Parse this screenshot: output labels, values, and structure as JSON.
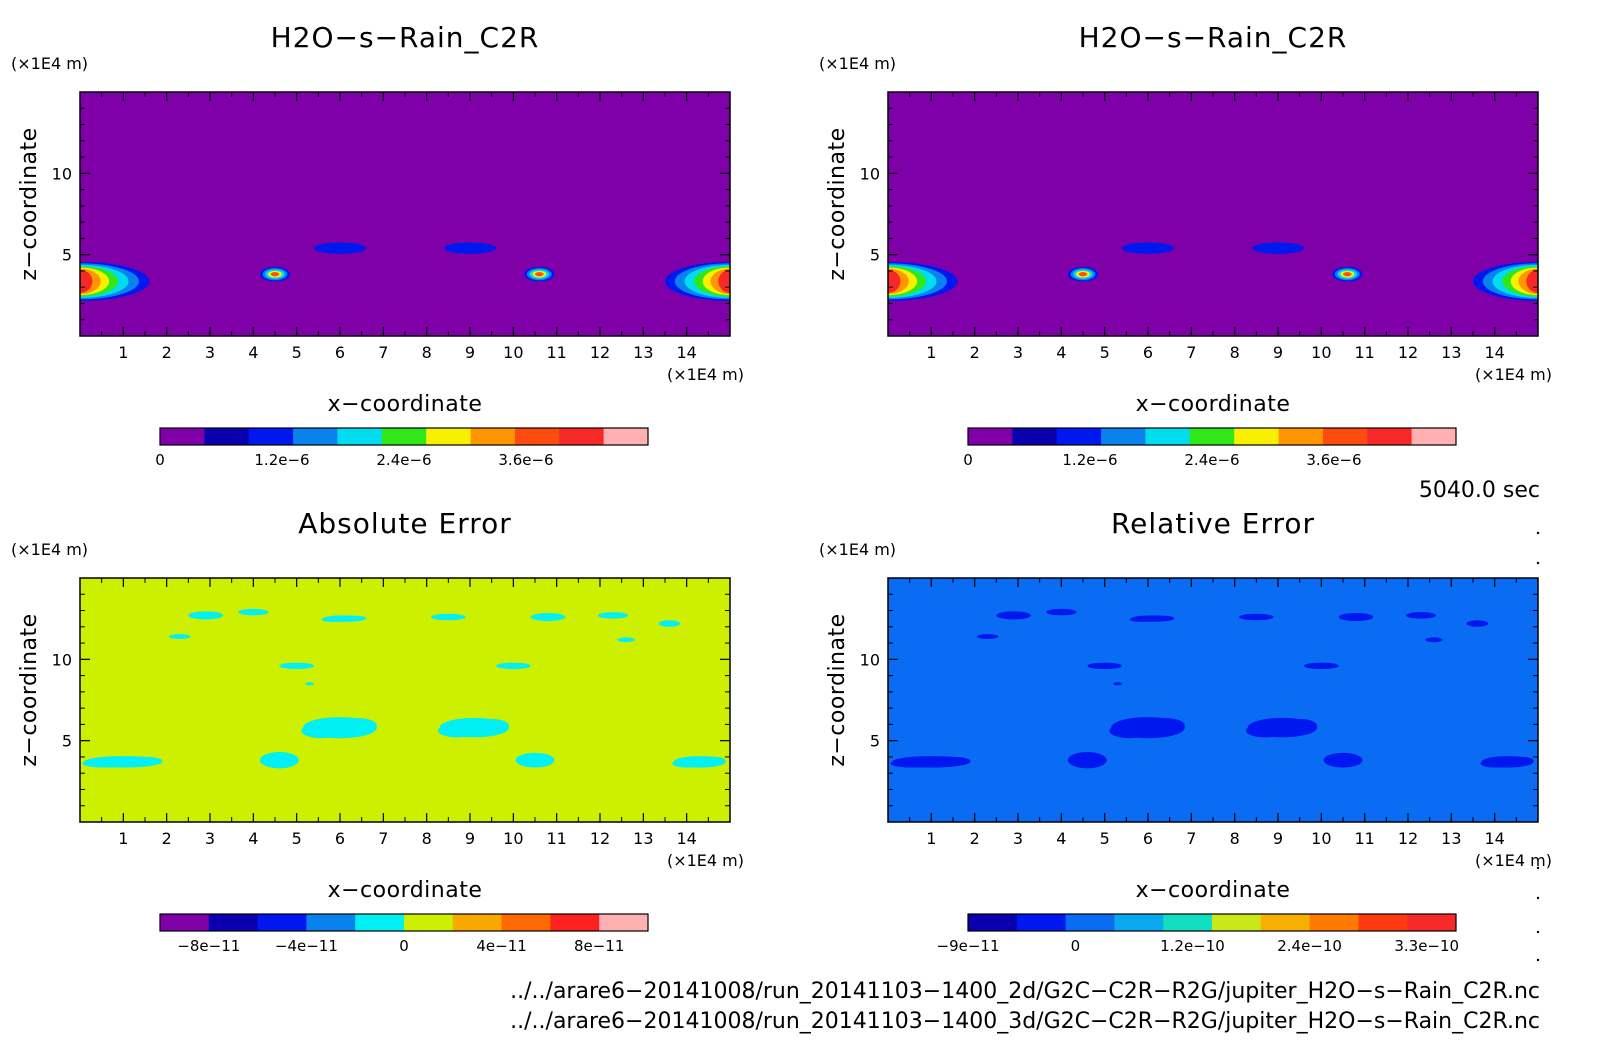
{
  "chart_data": [
    {
      "type": "heatmap",
      "title": "H2O−s−Rain_C2R",
      "xlabel": "x−coordinate",
      "ylabel": "z−coordinate",
      "x_unit": "(×1E4 m)",
      "y_unit": "(×1E4 m)",
      "xlim": [
        0,
        15
      ],
      "ylim": [
        0,
        15
      ],
      "xticks": [
        "1",
        "2",
        "3",
        "4",
        "5",
        "6",
        "7",
        "8",
        "9",
        "10",
        "11",
        "12",
        "13",
        "14"
      ],
      "yticks": [
        "5",
        "10"
      ],
      "background_color": "#7f00a8",
      "colorbar": {
        "colors": [
          "#7f00a8",
          "#0a00b0",
          "#0018f0",
          "#0a82ee",
          "#00dcf0",
          "#30e818",
          "#f8f000",
          "#ff9600",
          "#ff4a10",
          "#f62828",
          "#ffb0b0"
        ],
        "labels": [
          "0",
          "1.2e−6",
          "2.4e−6",
          "3.6e−6"
        ],
        "label_index": [
          0,
          2.75,
          5.5,
          8.25
        ]
      },
      "features": [
        {
          "type": "plume",
          "x": 0,
          "z": 3.6,
          "w": 1.6,
          "h": 1.2
        },
        {
          "type": "plume-right",
          "x": 15,
          "z": 3.6,
          "w": 1.5,
          "h": 1.2
        },
        {
          "type": "blob",
          "x": 4.5,
          "z": 3.8,
          "w": 0.35,
          "h": 0.45
        },
        {
          "type": "blob",
          "x": 10.6,
          "z": 3.8,
          "w": 0.35,
          "h": 0.45
        },
        {
          "type": "cloud",
          "x": 6.0,
          "z": 5.4,
          "w": 0.6,
          "h": 0.35
        },
        {
          "type": "cloud",
          "x": 9.0,
          "z": 5.4,
          "w": 0.6,
          "h": 0.35
        }
      ]
    },
    {
      "type": "heatmap",
      "title": "H2O−s−Rain_C2R",
      "xlabel": "x−coordinate",
      "ylabel": "z−coordinate",
      "x_unit": "(×1E4 m)",
      "y_unit": "(×1E4 m)",
      "xlim": [
        0,
        15
      ],
      "ylim": [
        0,
        15
      ],
      "xticks": [
        "1",
        "2",
        "3",
        "4",
        "5",
        "6",
        "7",
        "8",
        "9",
        "10",
        "11",
        "12",
        "13",
        "14"
      ],
      "yticks": [
        "5",
        "10"
      ],
      "background_color": "#7f00a8",
      "colorbar": {
        "colors": [
          "#7f00a8",
          "#0a00b0",
          "#0018f0",
          "#0a82ee",
          "#00dcf0",
          "#30e818",
          "#f8f000",
          "#ff9600",
          "#ff4a10",
          "#f62828",
          "#ffb0b0"
        ],
        "labels": [
          "0",
          "1.2e−6",
          "2.4e−6",
          "3.6e−6"
        ],
        "label_index": [
          0,
          2.75,
          5.5,
          8.25
        ]
      },
      "features": [
        {
          "type": "plume",
          "x": 0,
          "z": 3.6,
          "w": 1.6,
          "h": 1.2
        },
        {
          "type": "plume-right",
          "x": 15,
          "z": 3.6,
          "w": 1.5,
          "h": 1.2
        },
        {
          "type": "blob",
          "x": 4.5,
          "z": 3.8,
          "w": 0.35,
          "h": 0.45
        },
        {
          "type": "blob",
          "x": 10.6,
          "z": 3.8,
          "w": 0.35,
          "h": 0.45
        },
        {
          "type": "cloud",
          "x": 6.0,
          "z": 5.4,
          "w": 0.6,
          "h": 0.35
        },
        {
          "type": "cloud",
          "x": 9.0,
          "z": 5.4,
          "w": 0.6,
          "h": 0.35
        }
      ]
    },
    {
      "type": "heatmap",
      "title": "Absolute Error",
      "xlabel": "x−coordinate",
      "ylabel": "z−coordinate",
      "x_unit": "(×1E4 m)",
      "y_unit": "(×1E4 m)",
      "xlim": [
        0,
        15
      ],
      "ylim": [
        0,
        15
      ],
      "xticks": [
        "1",
        "2",
        "3",
        "4",
        "5",
        "6",
        "7",
        "8",
        "9",
        "10",
        "11",
        "12",
        "13",
        "14"
      ],
      "yticks": [
        "5",
        "10"
      ],
      "background_color": "#ccf000",
      "patch_color": "#00f0f4",
      "colorbar": {
        "colors": [
          "#7f00a8",
          "#0a00b0",
          "#0018f0",
          "#0a82ee",
          "#00f0f4",
          "#ccf000",
          "#f8a800",
          "#ff6a00",
          "#ff2020",
          "#ffb0b0"
        ],
        "labels": [
          "−8e−11",
          "−4e−11",
          "0",
          "4e−11",
          "8e−11"
        ],
        "label_index": [
          1.0,
          3.0,
          5.0,
          7.0,
          9.0
        ]
      },
      "features": [
        {
          "x": 6.0,
          "z": 5.8,
          "w": 0.85,
          "h": 0.65
        },
        {
          "x": 9.1,
          "z": 5.8,
          "w": 0.8,
          "h": 0.6
        },
        {
          "x": 4.6,
          "z": 3.8,
          "w": 0.45,
          "h": 0.5
        },
        {
          "x": 10.5,
          "z": 3.8,
          "w": 0.45,
          "h": 0.45
        },
        {
          "x": 1.0,
          "z": 3.7,
          "w": 0.9,
          "h": 0.35
        },
        {
          "x": 14.3,
          "z": 3.7,
          "w": 0.6,
          "h": 0.35
        },
        {
          "x": 5.0,
          "z": 9.6,
          "w": 0.4,
          "h": 0.2
        },
        {
          "x": 10.0,
          "z": 9.6,
          "w": 0.4,
          "h": 0.2
        },
        {
          "x": 2.9,
          "z": 12.7,
          "w": 0.4,
          "h": 0.25
        },
        {
          "x": 4.0,
          "z": 12.9,
          "w": 0.35,
          "h": 0.2
        },
        {
          "x": 6.1,
          "z": 12.5,
          "w": 0.5,
          "h": 0.2
        },
        {
          "x": 8.5,
          "z": 12.6,
          "w": 0.4,
          "h": 0.2
        },
        {
          "x": 10.8,
          "z": 12.6,
          "w": 0.4,
          "h": 0.25
        },
        {
          "x": 12.3,
          "z": 12.7,
          "w": 0.35,
          "h": 0.2
        },
        {
          "x": 13.6,
          "z": 12.2,
          "w": 0.25,
          "h": 0.2
        },
        {
          "x": 2.3,
          "z": 11.4,
          "w": 0.25,
          "h": 0.15
        },
        {
          "x": 12.6,
          "z": 11.2,
          "w": 0.2,
          "h": 0.15
        },
        {
          "x": 5.3,
          "z": 8.5,
          "w": 0.1,
          "h": 0.1
        }
      ]
    },
    {
      "type": "heatmap",
      "title": "Relative Error",
      "xlabel": "x−coordinate",
      "ylabel": "z−coordinate",
      "x_unit": "(×1E4 m)",
      "y_unit": "(×1E4 m)",
      "xlim": [
        0,
        15
      ],
      "ylim": [
        0,
        15
      ],
      "xticks": [
        "1",
        "2",
        "3",
        "4",
        "5",
        "6",
        "7",
        "8",
        "9",
        "10",
        "11",
        "12",
        "13",
        "14"
      ],
      "yticks": [
        "5",
        "10"
      ],
      "background_color": "#0a6cf2",
      "patch_color": "#0018f0",
      "colorbar": {
        "colors": [
          "#0a00b0",
          "#0018f0",
          "#0a6cf2",
          "#0aa8ee",
          "#10e0c0",
          "#c8e818",
          "#f8b000",
          "#ff7a00",
          "#ff3a10",
          "#f62828"
        ],
        "labels": [
          "−9e−11",
          "0",
          "1.2e−10",
          "2.4e−10",
          "3.3e−10"
        ],
        "label_index": [
          0,
          2.2,
          4.6,
          7.0,
          9.4
        ]
      },
      "features": [
        {
          "x": 6.0,
          "z": 5.8,
          "w": 0.85,
          "h": 0.65
        },
        {
          "x": 9.1,
          "z": 5.8,
          "w": 0.8,
          "h": 0.6
        },
        {
          "x": 4.6,
          "z": 3.8,
          "w": 0.45,
          "h": 0.5
        },
        {
          "x": 10.5,
          "z": 3.8,
          "w": 0.45,
          "h": 0.45
        },
        {
          "x": 1.0,
          "z": 3.7,
          "w": 0.9,
          "h": 0.35
        },
        {
          "x": 14.3,
          "z": 3.7,
          "w": 0.6,
          "h": 0.35
        },
        {
          "x": 5.0,
          "z": 9.6,
          "w": 0.4,
          "h": 0.2
        },
        {
          "x": 10.0,
          "z": 9.6,
          "w": 0.4,
          "h": 0.2
        },
        {
          "x": 2.9,
          "z": 12.7,
          "w": 0.4,
          "h": 0.25
        },
        {
          "x": 4.0,
          "z": 12.9,
          "w": 0.35,
          "h": 0.2
        },
        {
          "x": 6.1,
          "z": 12.5,
          "w": 0.5,
          "h": 0.2
        },
        {
          "x": 8.5,
          "z": 12.6,
          "w": 0.4,
          "h": 0.2
        },
        {
          "x": 10.8,
          "z": 12.6,
          "w": 0.4,
          "h": 0.25
        },
        {
          "x": 12.3,
          "z": 12.7,
          "w": 0.35,
          "h": 0.2
        },
        {
          "x": 13.6,
          "z": 12.2,
          "w": 0.25,
          "h": 0.2
        },
        {
          "x": 2.3,
          "z": 11.4,
          "w": 0.25,
          "h": 0.15
        },
        {
          "x": 12.6,
          "z": 11.2,
          "w": 0.2,
          "h": 0.15
        },
        {
          "x": 5.3,
          "z": 8.5,
          "w": 0.1,
          "h": 0.1
        }
      ]
    }
  ],
  "time_label": "5040.0 sec",
  "file_paths": [
    "../../arare6−20141008/run_20141103−1400_2d/G2C−C2R−R2G/jupiter_H2O−s−Rain_C2R.nc",
    "../../arare6−20141008/run_20141103−1400_3d/G2C−C2R−R2G/jupiter_H2O−s−Rain_C2R.nc"
  ]
}
